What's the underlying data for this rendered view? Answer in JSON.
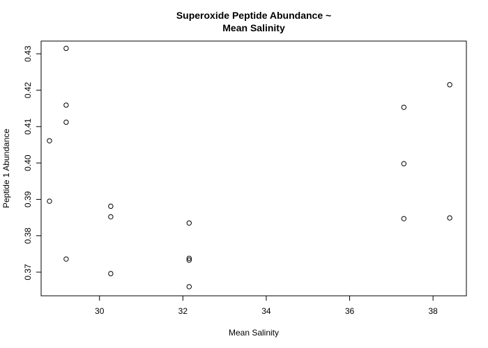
{
  "chart_data": {
    "type": "scatter",
    "title_line1": "Superoxide Peptide Abundance ~",
    "title_line2": "Mean Salinity",
    "xlabel": "Mean Salinity",
    "ylabel": "Peptide 1 Abundance",
    "xlim": [
      28.6,
      38.8
    ],
    "ylim": [
      0.3635,
      0.4335
    ],
    "xticks": [
      30,
      32,
      34,
      36,
      38
    ],
    "yticks": [
      0.37,
      0.38,
      0.39,
      0.4,
      0.41,
      0.42,
      0.43
    ],
    "grid": false,
    "points": [
      {
        "x": 28.8,
        "y": 0.4061
      },
      {
        "x": 28.8,
        "y": 0.3895
      },
      {
        "x": 29.2,
        "y": 0.4315
      },
      {
        "x": 29.2,
        "y": 0.4159
      },
      {
        "x": 29.2,
        "y": 0.4112
      },
      {
        "x": 29.2,
        "y": 0.3736
      },
      {
        "x": 30.27,
        "y": 0.3881
      },
      {
        "x": 30.27,
        "y": 0.3852
      },
      {
        "x": 30.27,
        "y": 0.3696
      },
      {
        "x": 32.15,
        "y": 0.3835
      },
      {
        "x": 32.15,
        "y": 0.3738
      },
      {
        "x": 32.15,
        "y": 0.3733
      },
      {
        "x": 32.15,
        "y": 0.366
      },
      {
        "x": 37.3,
        "y": 0.4153
      },
      {
        "x": 37.3,
        "y": 0.3998
      },
      {
        "x": 37.3,
        "y": 0.3847
      },
      {
        "x": 38.4,
        "y": 0.4215
      },
      {
        "x": 38.4,
        "y": 0.3849
      }
    ]
  }
}
